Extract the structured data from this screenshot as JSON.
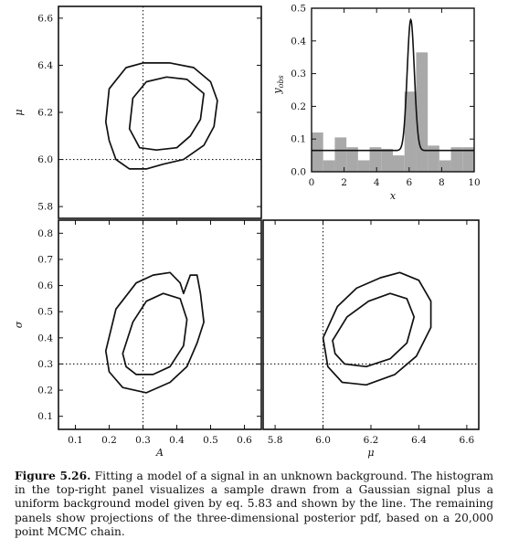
{
  "caption": {
    "label": "Figure 5.26.",
    "text": "Fitting a model of a signal in an unknown background. The histogram in the top-right panel visualizes a sample drawn from a Gaussian signal plus a uniform background model given by eq. 5.83 and shown by the line. The remaining panels show projections of the three-dimensional posterior pdf, based on a 20,000 point MCMC chain."
  },
  "chart_data": [
    {
      "type": "contour",
      "panel": "A-mu",
      "xlabel": "",
      "ylabel": "μ",
      "xlim": [
        0.05,
        0.65
      ],
      "ylim": [
        5.75,
        6.65
      ],
      "yticks": [
        "5.8",
        "6.0",
        "6.2",
        "6.4",
        "6.6"
      ],
      "truth": {
        "x": 0.3,
        "y": 6.0
      },
      "contours": [
        {
          "level": "outer",
          "points": [
            [
              0.19,
              6.16
            ],
            [
              0.2,
              6.3
            ],
            [
              0.25,
              6.39
            ],
            [
              0.3,
              6.41
            ],
            [
              0.38,
              6.41
            ],
            [
              0.45,
              6.39
            ],
            [
              0.5,
              6.33
            ],
            [
              0.52,
              6.25
            ],
            [
              0.51,
              6.14
            ],
            [
              0.48,
              6.06
            ],
            [
              0.42,
              6.0
            ],
            [
              0.36,
              5.98
            ],
            [
              0.31,
              5.96
            ],
            [
              0.26,
              5.96
            ],
            [
              0.22,
              6.0
            ],
            [
              0.2,
              6.08
            ]
          ]
        },
        {
          "level": "inner",
          "points": [
            [
              0.26,
              6.13
            ],
            [
              0.27,
              6.26
            ],
            [
              0.31,
              6.33
            ],
            [
              0.37,
              6.35
            ],
            [
              0.43,
              6.34
            ],
            [
              0.48,
              6.28
            ],
            [
              0.47,
              6.17
            ],
            [
              0.44,
              6.1
            ],
            [
              0.4,
              6.05
            ],
            [
              0.34,
              6.04
            ],
            [
              0.29,
              6.05
            ]
          ]
        }
      ]
    },
    {
      "type": "bar",
      "panel": "histogram",
      "xlabel": "x",
      "ylabel": "y_obs",
      "xlim": [
        0,
        10
      ],
      "ylim": [
        0,
        0.5
      ],
      "xticks": [
        "0",
        "2",
        "4",
        "6",
        "8",
        "10"
      ],
      "yticks": [
        "0.0",
        "0.1",
        "0.2",
        "0.3",
        "0.4",
        "0.5"
      ],
      "bin_edges": [
        0,
        0.714,
        1.429,
        2.143,
        2.857,
        3.571,
        4.286,
        5.0,
        5.714,
        6.429,
        7.143,
        7.857,
        8.571,
        9.286,
        10
      ],
      "values": [
        0.12,
        0.035,
        0.105,
        0.075,
        0.035,
        0.075,
        0.07,
        0.05,
        0.245,
        0.365,
        0.08,
        0.035,
        0.075,
        0.075
      ],
      "model": {
        "background": 0.065,
        "amplitude": 0.4,
        "mu": 6.1,
        "sigma": 0.22
      }
    },
    {
      "type": "contour",
      "panel": "A-sigma",
      "xlabel": "A",
      "ylabel": "σ",
      "xlim": [
        0.05,
        0.65
      ],
      "ylim": [
        0.05,
        0.85
      ],
      "xticks": [
        "0.1",
        "0.2",
        "0.3",
        "0.4",
        "0.5",
        "0.6"
      ],
      "yticks": [
        "0.1",
        "0.2",
        "0.3",
        "0.4",
        "0.5",
        "0.6",
        "0.7",
        "0.8"
      ],
      "truth": {
        "x": 0.3,
        "y": 0.3
      },
      "contours": [
        {
          "level": "outer",
          "points": [
            [
              0.19,
              0.35
            ],
            [
              0.22,
              0.51
            ],
            [
              0.28,
              0.61
            ],
            [
              0.33,
              0.64
            ],
            [
              0.38,
              0.65
            ],
            [
              0.41,
              0.61
            ],
            [
              0.42,
              0.57
            ],
            [
              0.44,
              0.64
            ],
            [
              0.46,
              0.64
            ],
            [
              0.47,
              0.57
            ],
            [
              0.48,
              0.46
            ],
            [
              0.46,
              0.38
            ],
            [
              0.43,
              0.29
            ],
            [
              0.38,
              0.23
            ],
            [
              0.31,
              0.19
            ],
            [
              0.24,
              0.21
            ],
            [
              0.2,
              0.27
            ]
          ]
        },
        {
          "level": "inner",
          "points": [
            [
              0.24,
              0.34
            ],
            [
              0.27,
              0.46
            ],
            [
              0.31,
              0.54
            ],
            [
              0.36,
              0.57
            ],
            [
              0.41,
              0.55
            ],
            [
              0.43,
              0.47
            ],
            [
              0.42,
              0.37
            ],
            [
              0.38,
              0.29
            ],
            [
              0.33,
              0.26
            ],
            [
              0.28,
              0.26
            ],
            [
              0.25,
              0.29
            ]
          ]
        }
      ]
    },
    {
      "type": "contour",
      "panel": "mu-sigma",
      "xlabel": "μ",
      "ylabel": "",
      "xlim": [
        5.75,
        6.65
      ],
      "ylim": [
        0.05,
        0.85
      ],
      "xticks": [
        "5.8",
        "6.0",
        "6.2",
        "6.4",
        "6.6"
      ],
      "truth": {
        "x": 6.0,
        "y": 0.3
      },
      "contours": [
        {
          "level": "outer",
          "points": [
            [
              6.0,
              0.4
            ],
            [
              6.06,
              0.52
            ],
            [
              6.14,
              0.59
            ],
            [
              6.24,
              0.63
            ],
            [
              6.32,
              0.65
            ],
            [
              6.4,
              0.62
            ],
            [
              6.45,
              0.54
            ],
            [
              6.45,
              0.44
            ],
            [
              6.39,
              0.33
            ],
            [
              6.3,
              0.26
            ],
            [
              6.18,
              0.22
            ],
            [
              6.08,
              0.23
            ],
            [
              6.02,
              0.29
            ]
          ]
        },
        {
          "level": "inner",
          "points": [
            [
              6.04,
              0.39
            ],
            [
              6.1,
              0.48
            ],
            [
              6.19,
              0.54
            ],
            [
              6.28,
              0.57
            ],
            [
              6.35,
              0.55
            ],
            [
              6.38,
              0.48
            ],
            [
              6.35,
              0.38
            ],
            [
              6.28,
              0.32
            ],
            [
              6.18,
              0.29
            ],
            [
              6.09,
              0.3
            ],
            [
              6.05,
              0.34
            ]
          ]
        }
      ]
    }
  ]
}
